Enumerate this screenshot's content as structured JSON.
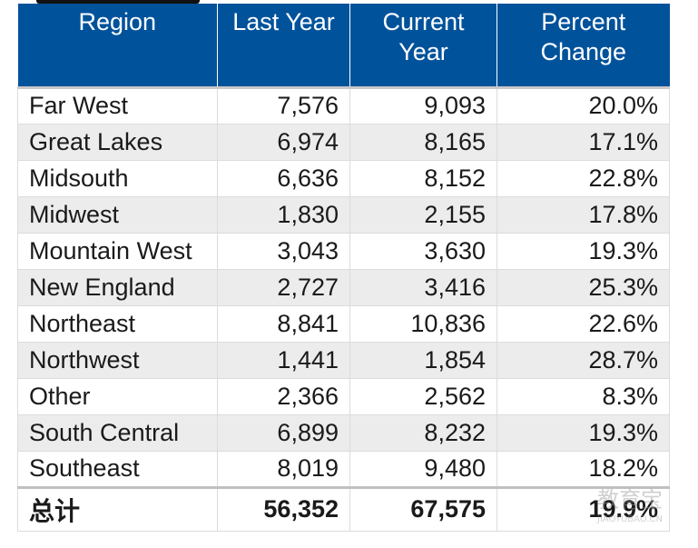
{
  "table": {
    "headers": [
      "Region",
      "Last Year",
      "Current Year",
      "Percent Change"
    ],
    "rows": [
      {
        "region": "Far West",
        "last_year": "7,576",
        "current_year": "9,093",
        "percent_change": "20.0%"
      },
      {
        "region": "Great Lakes",
        "last_year": "6,974",
        "current_year": "8,165",
        "percent_change": "17.1%"
      },
      {
        "region": "Midsouth",
        "last_year": "6,636",
        "current_year": "8,152",
        "percent_change": "22.8%"
      },
      {
        "region": "Midwest",
        "last_year": "1,830",
        "current_year": "2,155",
        "percent_change": "17.8%"
      },
      {
        "region": "Mountain West",
        "last_year": "3,043",
        "current_year": "3,630",
        "percent_change": "19.3%"
      },
      {
        "region": "New England",
        "last_year": "2,727",
        "current_year": "3,416",
        "percent_change": "25.3%"
      },
      {
        "region": "Northeast",
        "last_year": "8,841",
        "current_year": "10,836",
        "percent_change": "22.6%"
      },
      {
        "region": "Northwest",
        "last_year": "1,441",
        "current_year": "1,854",
        "percent_change": "28.7%"
      },
      {
        "region": "Other",
        "last_year": "2,366",
        "current_year": "2,562",
        "percent_change": "8.3%"
      },
      {
        "region": "South Central",
        "last_year": "6,899",
        "current_year": "8,232",
        "percent_change": "19.3%"
      },
      {
        "region": "Southeast",
        "last_year": "8,019",
        "current_year": "9,480",
        "percent_change": "18.2%"
      }
    ],
    "total": {
      "label": "总计",
      "last_year": "56,352",
      "current_year": "67,575",
      "percent_change": "19.9%"
    }
  },
  "watermark": {
    "text": "教育宝",
    "subtext": "JIAOYUBAO.CN"
  },
  "colors": {
    "header_bg": "#00529b",
    "header_text": "#ffffff",
    "row_alt_bg": "#ececec",
    "border": "#dcdcdc"
  }
}
